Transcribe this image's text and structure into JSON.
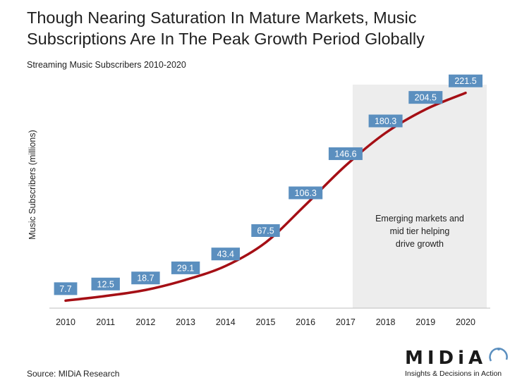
{
  "header": {
    "title": "Though Nearing Saturation In Mature Markets, Music Subscriptions Are In The Peak Growth Period Globally",
    "subtitle": "Streaming Music Subscribers 2010-2020"
  },
  "footer": {
    "source": "Source: MIDiA Research",
    "logo_text": "MIDiA",
    "logo_tagline": "Insights & Decisions in Action"
  },
  "chart_data": {
    "type": "line",
    "title": "Streaming Music Subscribers 2010-2020",
    "xlabel": "",
    "ylabel": "Music Subscribers (millions)",
    "categories": [
      "2010",
      "2011",
      "2012",
      "2013",
      "2014",
      "2015",
      "2016",
      "2017",
      "2018",
      "2019",
      "2020"
    ],
    "series": [
      {
        "name": "",
        "values": [
          7.7,
          12.5,
          18.7,
          29.1,
          43.4,
          67.5,
          106.3,
          146.6,
          180.3,
          204.5,
          221.5
        ]
      }
    ],
    "labels": [
      "7.7",
      "12.5",
      "18.7",
      "29.1",
      "43.4",
      "67.5",
      "106.3",
      "146.6",
      "180.3",
      "204.5",
      "221.5"
    ],
    "ylim": [
      0,
      230
    ],
    "grid": false,
    "legend": "none",
    "shaded_region": {
      "from": "2017",
      "to": "2020"
    },
    "annotation": "Emerging markets and mid tier helping drive growth",
    "colors": {
      "line": "#a50f15",
      "label_bg": "#5b8fbf",
      "label_text": "#ffffff",
      "shade": "#ededed"
    }
  }
}
